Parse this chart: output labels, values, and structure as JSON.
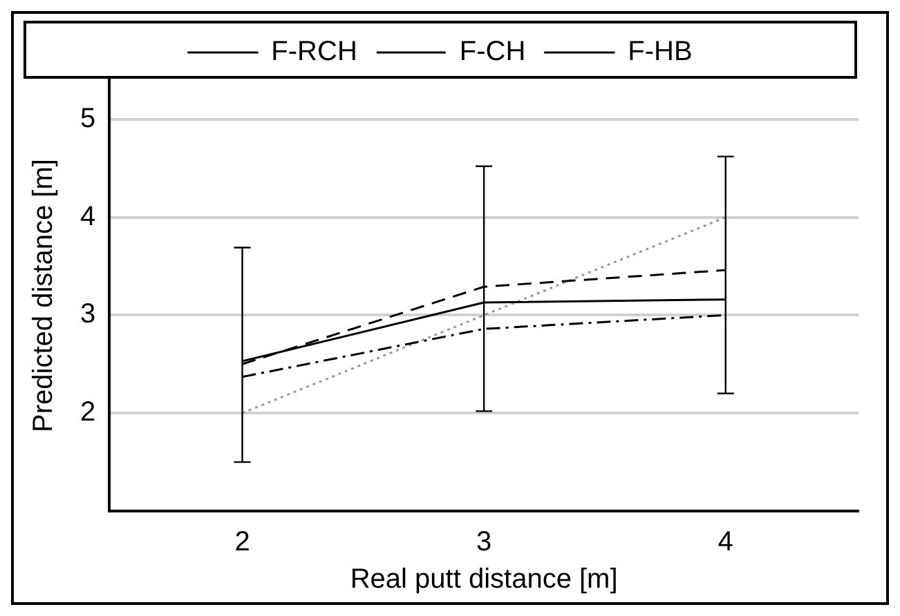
{
  "chart_data": {
    "type": "line",
    "xlabel": "Real putt distance [m]",
    "ylabel": "Predicted distance [m]",
    "x": [
      2,
      3,
      4
    ],
    "series": [
      {
        "name": "F-RCH",
        "color": "#000000",
        "line_style": "solid",
        "values": [
          2.53,
          3.13,
          3.16
        ],
        "errors": [
          [
            1.5,
            3.69
          ],
          [
            2.02,
            4.52
          ],
          [
            2.2,
            4.62
          ]
        ]
      },
      {
        "name": "F-CH",
        "color": "#000000",
        "line_style": "dashdot",
        "values": [
          2.37,
          2.86,
          3.0
        ]
      },
      {
        "name": "F-HB",
        "color": "#000000",
        "line_style": "dashed",
        "values": [
          2.5,
          3.29,
          3.46
        ]
      },
      {
        "color": "#999999",
        "line_style": "dotted",
        "values": [
          2.0,
          3.0,
          4.0
        ]
      }
    ],
    "xlim": [
      1.45,
      4.55
    ],
    "xticks": [
      2,
      3,
      4
    ],
    "ylim": [
      1.0,
      5.4
    ],
    "yticks": [
      2,
      3,
      4,
      5
    ],
    "grid": "y",
    "legend": "top",
    "marker": "none"
  }
}
